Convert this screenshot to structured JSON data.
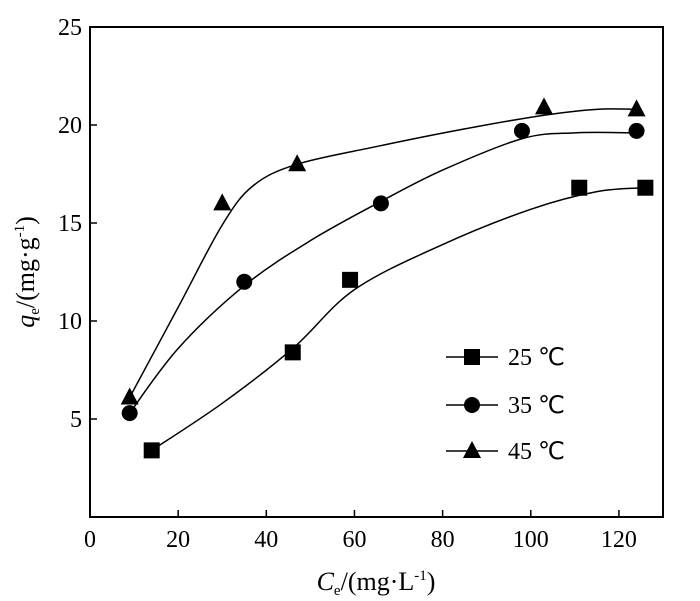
{
  "chart_data": {
    "type": "scatter",
    "title": "",
    "xlabel": {
      "italic": "C",
      "sub": "e",
      "rest": "/(mg·L",
      "sup": "-1",
      "end": ")"
    },
    "ylabel": {
      "italic": "q",
      "sub": "e",
      "rest": "/(mg·g",
      "sup": "-1",
      "end": ")"
    },
    "xlim": [
      0,
      130
    ],
    "ylim": [
      0,
      25
    ],
    "xticks": [
      "0",
      "20",
      "40",
      "60",
      "80",
      "100",
      "120"
    ],
    "yticks": [
      "5",
      "10",
      "15",
      "20",
      "25"
    ],
    "grid": false,
    "legend_position": "right-middle",
    "series": [
      {
        "name": "25 ℃",
        "marker": "square",
        "x": [
          14,
          46,
          59,
          111,
          126
        ],
        "y": [
          3.4,
          8.4,
          12.1,
          16.8,
          16.8
        ],
        "fit": [
          [
            14,
            3.4
          ],
          [
            30,
            5.8
          ],
          [
            46,
            8.6
          ],
          [
            60,
            11.6
          ],
          [
            80,
            13.9
          ],
          [
            100,
            15.7
          ],
          [
            115,
            16.6
          ],
          [
            126,
            16.8
          ]
        ]
      },
      {
        "name": "35 ℃",
        "marker": "circle",
        "x": [
          9,
          35,
          66,
          98,
          124
        ],
        "y": [
          5.3,
          12.0,
          16.0,
          19.7,
          19.7
        ],
        "fit": [
          [
            9,
            5.3
          ],
          [
            20,
            8.6
          ],
          [
            35,
            11.8
          ],
          [
            50,
            14.1
          ],
          [
            66,
            16.1
          ],
          [
            80,
            17.7
          ],
          [
            98,
            19.3
          ],
          [
            110,
            19.6
          ],
          [
            124,
            19.6
          ]
        ]
      },
      {
        "name": "45 ℃",
        "marker": "triangle",
        "x": [
          9,
          30,
          47,
          103,
          124
        ],
        "y": [
          6.1,
          16.0,
          18.0,
          20.9,
          20.8
        ],
        "fit": [
          [
            9,
            6.1
          ],
          [
            20,
            10.7
          ],
          [
            30,
            14.9
          ],
          [
            37,
            16.9
          ],
          [
            47,
            18.0
          ],
          [
            65,
            18.9
          ],
          [
            85,
            19.8
          ],
          [
            103,
            20.5
          ],
          [
            115,
            20.8
          ],
          [
            124,
            20.8
          ]
        ]
      }
    ]
  }
}
